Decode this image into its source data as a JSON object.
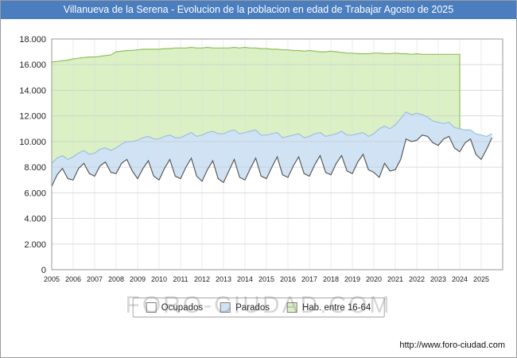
{
  "title": "Villanueva de la Serena - Evolucion de la poblacion en edad de Trabajar Agosto de 2025",
  "watermark": "FORO-CIUDAD.COM",
  "footer_url": "http://www.foro-ciudad.com",
  "colors": {
    "title_bar": "#4a7ebf",
    "grid_line": "#c9c9c9",
    "grid_line_vertical": "#dedede",
    "plot_border": "#9a9a9a",
    "hab_fill": "#dbf0c5",
    "hab_stroke": "#90bf5c",
    "parados_fill": "#cfe3f5",
    "parados_stroke": "#9fc0dd",
    "ocupados_fill": "#ffffff",
    "ocupados_stroke": "#5a5a5a"
  },
  "legend": [
    {
      "label": "Ocupados",
      "fill": "#ffffff"
    },
    {
      "label": "Parados",
      "fill": "#cfe3f5"
    },
    {
      "label": "Hab. entre 16-64",
      "fill": "#dbf0c5"
    }
  ],
  "chart_data": {
    "type": "area",
    "title": "Villanueva de la Serena - Evolucion de la poblacion en edad de Trabajar Agosto de 2025",
    "xlabel": "",
    "ylabel": "",
    "xlim": [
      2005,
      2026
    ],
    "ylim": [
      0,
      18000
    ],
    "grid": true,
    "legend_position": "bottom",
    "x_ticks": [
      "2005",
      "2006",
      "2007",
      "2008",
      "2009",
      "2010",
      "2011",
      "2012",
      "2013",
      "2014",
      "2015",
      "2016",
      "2017",
      "2018",
      "2019",
      "2020",
      "2021",
      "2022",
      "2023",
      "2024",
      "2025"
    ],
    "y_ticks": [
      "0",
      "2.000",
      "4.000",
      "6.000",
      "8.000",
      "10.000",
      "12.000",
      "14.000",
      "16.000",
      "18.000"
    ],
    "y_tick_step": 2000,
    "series": [
      {
        "name": "Hab. entre 16-64",
        "fill": "#dbf0c5",
        "stroke": "#90bf5c",
        "x_start": 2005,
        "x_step": 0.25,
        "values": [
          16200,
          16250,
          16300,
          16350,
          16450,
          16500,
          16550,
          16600,
          16600,
          16650,
          16700,
          16750,
          17000,
          17050,
          17100,
          17100,
          17150,
          17200,
          17200,
          17200,
          17200,
          17250,
          17250,
          17300,
          17300,
          17300,
          17350,
          17300,
          17300,
          17350,
          17300,
          17300,
          17300,
          17300,
          17350,
          17300,
          17350,
          17300,
          17300,
          17250,
          17250,
          17200,
          17200,
          17150,
          17150,
          17100,
          17100,
          17050,
          17100,
          17050,
          17000,
          17000,
          17050,
          17000,
          16950,
          16900,
          16900,
          16850,
          16850,
          16850,
          16900,
          16900,
          16850,
          16850,
          16900,
          16850,
          16850,
          16800,
          16850,
          16800,
          16800,
          16800,
          16800,
          16800,
          16800,
          16800,
          16800
        ]
      },
      {
        "name": "Parados",
        "fill": "#cfe3f5",
        "stroke": "#9fc0dd",
        "x_start": 2005,
        "x_step": 0.25,
        "values": [
          8300,
          8700,
          8900,
          8600,
          8800,
          9100,
          9300,
          9000,
          9100,
          9400,
          9500,
          9300,
          9500,
          9800,
          10000,
          10000,
          10100,
          10300,
          10400,
          10200,
          10200,
          10400,
          10500,
          10300,
          10300,
          10500,
          10700,
          10400,
          10500,
          10700,
          10800,
          10600,
          10600,
          10800,
          10900,
          10600,
          10700,
          10800,
          10900,
          10500,
          10500,
          10600,
          10700,
          10300,
          10400,
          10500,
          10600,
          10300,
          10400,
          10600,
          10700,
          10400,
          10500,
          10600,
          10800,
          10500,
          10500,
          10600,
          10700,
          10400,
          10600,
          11000,
          11200,
          11000,
          11300,
          11800,
          12300,
          12100,
          12200,
          12100,
          11900,
          11600,
          11500,
          11400,
          11500,
          11100,
          11000,
          10900,
          10900,
          10600,
          10500,
          10400,
          10600
        ]
      },
      {
        "name": "Ocupados",
        "fill": "#ffffff",
        "stroke": "#5a5a5a",
        "x_start": 2005,
        "x_step": 0.25,
        "values": [
          6500,
          7400,
          7900,
          7100,
          7000,
          7900,
          8300,
          7500,
          7300,
          8100,
          8400,
          7600,
          7500,
          8300,
          8600,
          7700,
          7100,
          7900,
          8500,
          7300,
          7000,
          7900,
          8600,
          7300,
          7100,
          8000,
          8700,
          7300,
          6900,
          7800,
          8500,
          7100,
          6800,
          7700,
          8600,
          7200,
          7000,
          7900,
          8700,
          7300,
          7100,
          8000,
          8800,
          7400,
          7200,
          8100,
          8800,
          7500,
          7300,
          8200,
          8900,
          7600,
          7400,
          8300,
          8900,
          7700,
          7500,
          8400,
          9000,
          7800,
          7600,
          7200,
          8300,
          7700,
          7800,
          8600,
          10200,
          10000,
          10100,
          10500,
          10400,
          9900,
          9700,
          10200,
          10400,
          9500,
          9200,
          9900,
          10200,
          9000,
          8600,
          9400,
          10300
        ]
      }
    ]
  }
}
